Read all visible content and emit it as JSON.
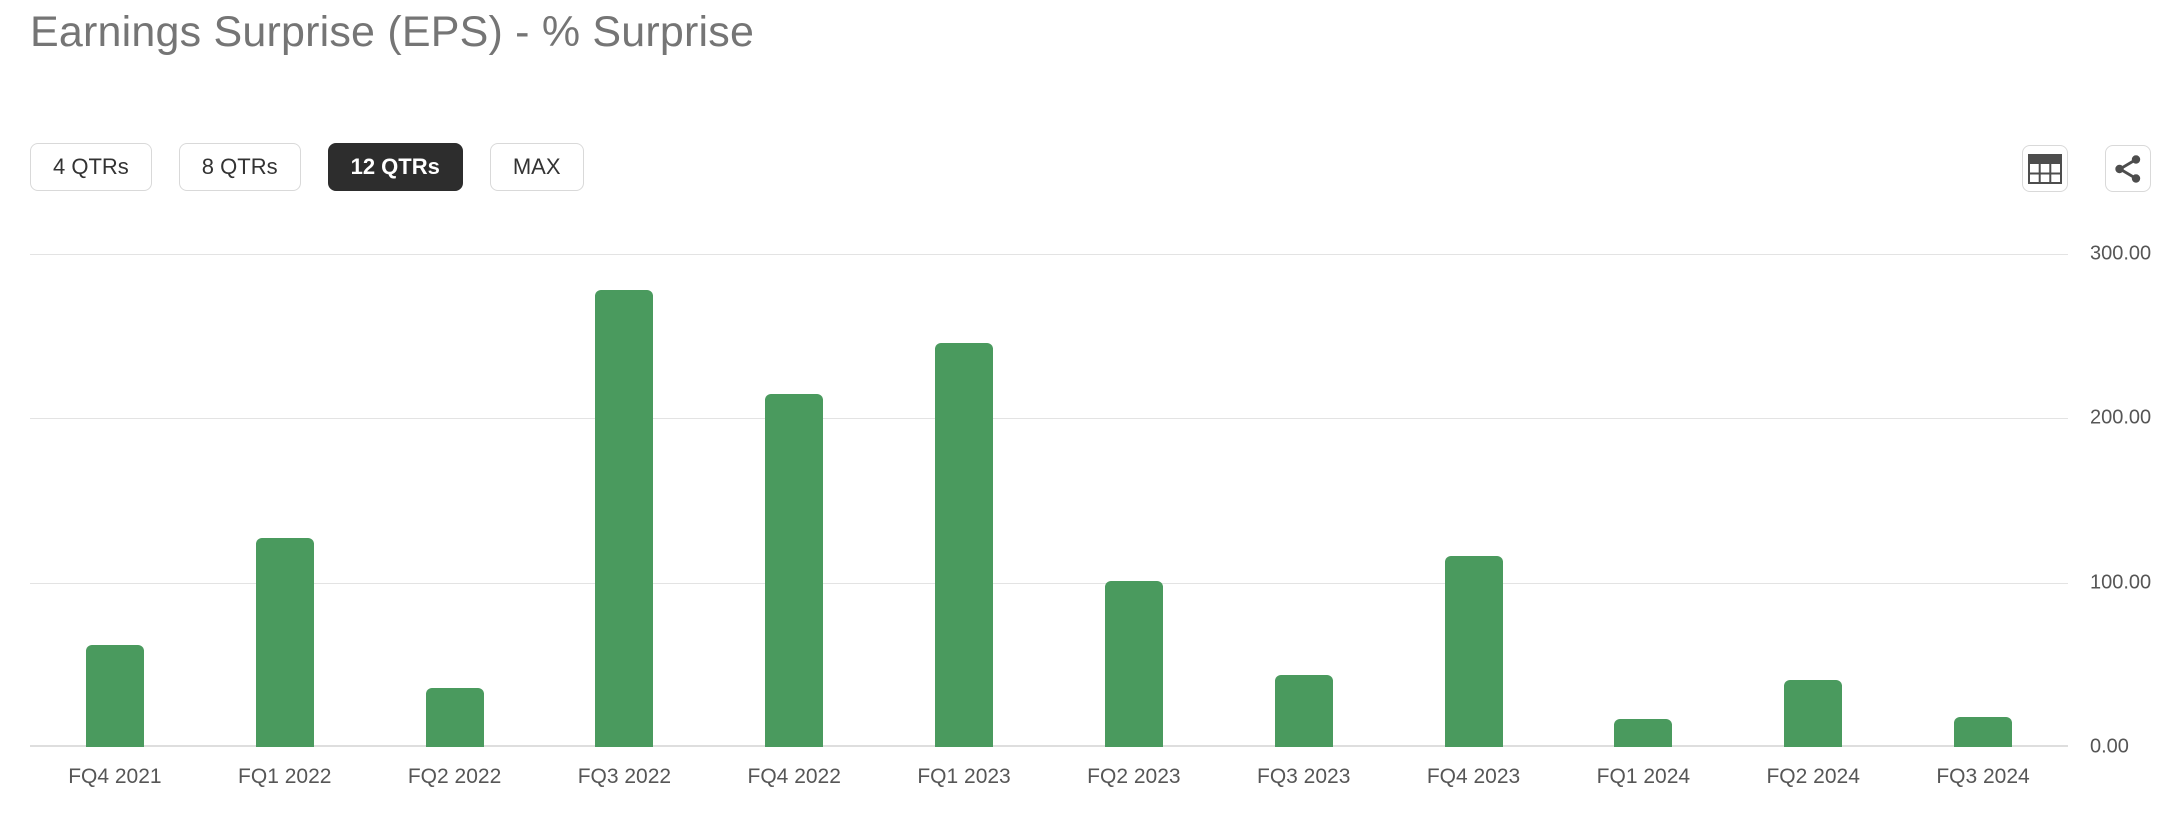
{
  "header": {
    "title": "Earnings Surprise (EPS) - % Surprise"
  },
  "toolbar": {
    "range_buttons": [
      {
        "label": "4 QTRs",
        "active": false
      },
      {
        "label": "8 QTRs",
        "active": false
      },
      {
        "label": "12 QTRs",
        "active": true
      },
      {
        "label": "MAX",
        "active": false
      }
    ],
    "icons": [
      {
        "name": "table-icon"
      },
      {
        "name": "share-icon"
      }
    ]
  },
  "chart_data": {
    "type": "bar",
    "title": "Earnings Surprise (EPS) - % Surprise",
    "categories": [
      "FQ4 2021",
      "FQ1 2022",
      "FQ2 2022",
      "FQ3 2022",
      "FQ4 2022",
      "FQ1 2023",
      "FQ2 2023",
      "FQ3 2023",
      "FQ4 2023",
      "FQ1 2024",
      "FQ2 2024",
      "FQ3 2024"
    ],
    "values": [
      62,
      127,
      36,
      278,
      215,
      246,
      101,
      44,
      116,
      17,
      41,
      18
    ],
    "xlabel": "",
    "ylabel": "",
    "ylim": [
      0,
      300
    ],
    "y_ticks": [
      "300.00",
      "200.00",
      "100.00",
      "0.00"
    ],
    "y_tick_values": [
      300,
      200,
      100,
      0
    ],
    "y_axis_position": "right",
    "grid": true,
    "legend": false,
    "bar_color": "#4a9a5e"
  },
  "colors": {
    "bar": "#4a9a5e",
    "title_text": "#757575",
    "axis_text": "#565656",
    "gridline": "#e3e3e3",
    "baseline": "#dedede",
    "button_border": "#d9d9d9",
    "button_text": "#333333",
    "active_button_bg": "#2d2d2d",
    "active_button_text": "#ffffff",
    "icon": "#4d4d4d"
  }
}
